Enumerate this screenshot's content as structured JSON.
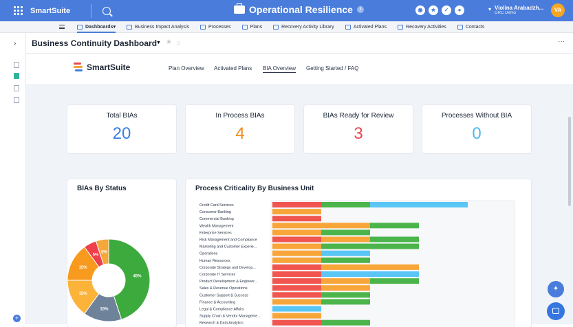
{
  "topbar": {
    "brand": "SmartSuite",
    "app_title": "Operational Resilience",
    "info": "i",
    "user_name": "Violina Arabadzh...",
    "user_org": "GRC Demo",
    "avatar_initials": "VA",
    "action_icons": [
      "robot-icon",
      "star-icon",
      "check-icon",
      "bell-icon"
    ]
  },
  "tabs": [
    {
      "label": "Dashboards",
      "active": true,
      "has_caret": true
    },
    {
      "label": "Business Impact Analysis"
    },
    {
      "label": "Processes"
    },
    {
      "label": "Plans"
    },
    {
      "label": "Recovery Activity Library"
    },
    {
      "label": "Activated Plans"
    },
    {
      "label": "Recovery Activities"
    },
    {
      "label": "Contacts"
    }
  ],
  "dashboard": {
    "title": "Business Continuity Dashboard",
    "logo_text": "SmartSuite",
    "nav": [
      {
        "label": "Plan Overview"
      },
      {
        "label": "Activated Plans"
      },
      {
        "label": "BIA Overview",
        "active": true
      },
      {
        "label": "Getting Started / FAQ"
      }
    ]
  },
  "kpis": [
    {
      "label": "Total BIAs",
      "value": "20",
      "color": "#3b7fe0"
    },
    {
      "label": "In Process BIAs",
      "value": "4",
      "color": "#f08c1a"
    },
    {
      "label": "BIAs Ready for Review",
      "value": "3",
      "color": "#e9474f"
    },
    {
      "label": "Processes Without BIA",
      "value": "0",
      "color": "#4fb8f0"
    }
  ],
  "panels": {
    "status_title": "BIAs By Status",
    "criticality_title": "Process Criticality By Business Unit"
  },
  "chart_data": [
    {
      "type": "pie",
      "title": "BIAs By Status",
      "slices": [
        {
          "value": 45,
          "label": "45%",
          "color": "#3daa3d"
        },
        {
          "value": 15,
          "label": "15%",
          "color": "#6e8299"
        },
        {
          "value": 15,
          "label": "15%",
          "color": "#fbb33a"
        },
        {
          "value": 15,
          "label": "15%",
          "color": "#f79a1e"
        },
        {
          "value": 5,
          "label": "5%",
          "color": "#ef3f4a"
        },
        {
          "value": 5,
          "label": "5%",
          "color": "#f5a73a"
        }
      ]
    },
    {
      "type": "bar",
      "title": "Process Criticality By Business Unit",
      "stacked": true,
      "horizontal": true,
      "categories": [
        "Credit Card Services",
        "Consumer Banking",
        "Commercial Banking",
        "Wealth Management",
        "Enterprise Services",
        "Risk Management and Compliance",
        "Marketing and Customer Experie...",
        "Operations",
        "Human Resources",
        "Corporate Strategy and Develop...",
        "Corporate IT Services",
        "Product Development & Engineer...",
        "Sales & Revenue Operations",
        "Customer Support & Success",
        "Finance & Accounting",
        "Legal & Compliance Affairs",
        "Supply Chain & Vendor Manageme...",
        "Research & Data Analytics"
      ],
      "series": [
        {
          "color": "#f0554f",
          "values": [
            1,
            0,
            1,
            0,
            0,
            1,
            0,
            0,
            0,
            1,
            1,
            1,
            1,
            1,
            0,
            0,
            0,
            1
          ]
        },
        {
          "color": "#f8a63a",
          "values": [
            0,
            1,
            0,
            2,
            1,
            1,
            1,
            1,
            1,
            2,
            0,
            1,
            1,
            0,
            1,
            0,
            1,
            0
          ]
        },
        {
          "color": "#4bb54b",
          "values": [
            1,
            0,
            0,
            1,
            1,
            1,
            2,
            0,
            1,
            0,
            0,
            1,
            0,
            1,
            1,
            0,
            0,
            1
          ]
        },
        {
          "color": "#59c6f5",
          "values": [
            2,
            0,
            0,
            0,
            0,
            0,
            0,
            1,
            0,
            0,
            2,
            0,
            0,
            0,
            0,
            1,
            0,
            0
          ]
        }
      ]
    }
  ]
}
